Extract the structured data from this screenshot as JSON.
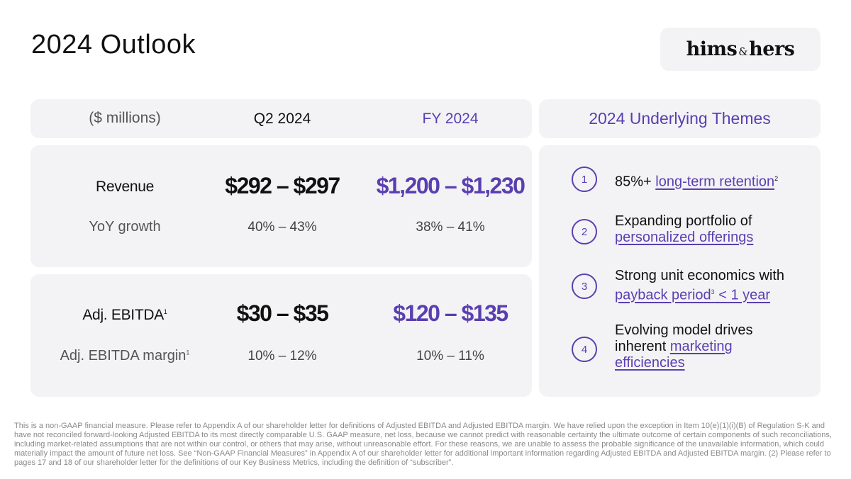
{
  "slide": {
    "title": "2024 Outlook",
    "logo": {
      "left": "hims",
      "amp": "&",
      "right": "hers"
    }
  },
  "table": {
    "headers": {
      "unit": "($ millions)",
      "q2": "Q2 2024",
      "fy": "FY 2024"
    },
    "revenue": {
      "label": "Revenue",
      "q2": "$292 – $297",
      "fy": "$1,200 – $1,230",
      "growth_label": "YoY growth",
      "growth_q2": "40% – 43%",
      "growth_fy": "38% – 41%"
    },
    "ebitda": {
      "label": "Adj. EBITDA",
      "label_sup": "1",
      "q2": "$30 – $35",
      "fy": "$120 – $135",
      "margin_label": "Adj. EBITDA margin",
      "margin_sup": "1",
      "margin_q2": "10% – 12%",
      "margin_fy": "10% – 11%"
    }
  },
  "themes": {
    "title": "2024 Underlying Themes",
    "items": [
      {
        "num": "1",
        "pre": "85%+ ",
        "link": "long-term retention",
        "sup": "2"
      },
      {
        "num": "2",
        "line1": "Expanding portfolio of",
        "link": "personalized offerings"
      },
      {
        "num": "3",
        "line1": "Strong unit economics with",
        "link": "payback period",
        "sup": "3",
        "post": " < 1 year"
      },
      {
        "num": "4",
        "line1": "Evolving model drives",
        "pre2": "inherent ",
        "link": "marketing",
        "link2": "efficiencies"
      }
    ]
  },
  "footnote": "This is a non-GAAP financial measure. Please refer to Appendix A of our shareholder letter for definitions of Adjusted EBITDA and Adjusted EBITDA margin. We have relied upon the exception in Item 10(e)(1)(i)(B) of Regulation S-K and have not reconciled forward-looking Adjusted EBITDA to its most directly comparable U.S. GAAP measure, net loss, because we cannot predict with reasonable certainty the ultimate outcome of certain components of such reconciliations, including market-related assumptions that are not within our control, or others that may arise, without unreasonable effort. For these reasons, we are unable to assess the probable significance of the unavailable information, which could materially impact the amount of future net loss. See “Non-GAAP Financial Measures” in Appendix A of our shareholder letter for additional important information regarding Adjusted EBITDA and Adjusted EBITDA margin. (2) Please refer to pages 17 and 18 of our shareholder letter for the definitions of our Key Business Metrics, including the definition of “subscriber”.",
  "colors": {
    "accent": "#5a3fb0",
    "panel": "#f3f3f5"
  }
}
